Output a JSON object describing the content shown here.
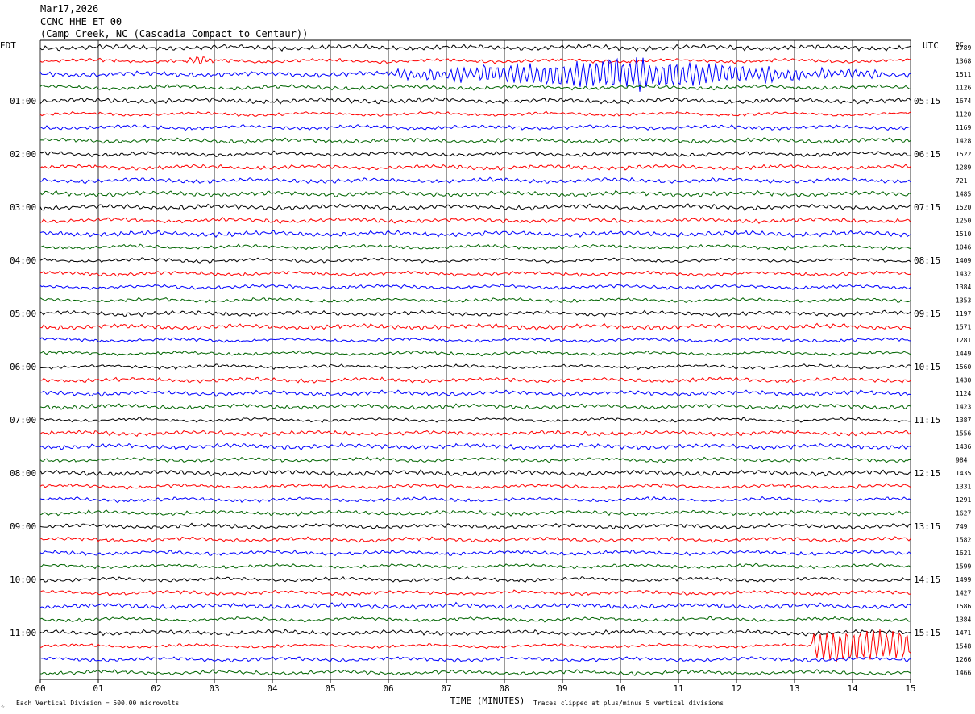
{
  "header": {
    "date": "Mar17,2026",
    "channel": "CCNC HHE ET 00",
    "location": "(Camp Creek, NC (Cascadia Compact to Centaur))"
  },
  "chart_data": {
    "type": "line",
    "subtype": "helicorder",
    "left_axis_label": "EDT",
    "right_axis_label": "UTC",
    "dc_label": "DC",
    "xlabel": "TIME (MINUTES)",
    "xlim": [
      0,
      15
    ],
    "x_ticks": [
      "00",
      "01",
      "02",
      "03",
      "04",
      "05",
      "06",
      "07",
      "08",
      "09",
      "10",
      "11",
      "12",
      "13",
      "14",
      "15"
    ],
    "grid": true,
    "trace_colors": [
      "#000000",
      "#ff0000",
      "#0000ff",
      "#006400"
    ],
    "rows_per_hour": 4,
    "minutes_per_row": 15,
    "left_hour_labels": [
      "01:00",
      "02:00",
      "03:00",
      "04:00",
      "05:00",
      "06:00",
      "07:00",
      "08:00",
      "09:00",
      "10:00",
      "11:00"
    ],
    "right_hour_labels": [
      "05:15",
      "06:15",
      "07:15",
      "08:15",
      "09:15",
      "10:15",
      "11:15",
      "12:15",
      "13:15",
      "14:15",
      "15:15"
    ],
    "dc_values": [
      "1789",
      "1368",
      "1511",
      "1126",
      "1674",
      "1120",
      "1169",
      "1428",
      "1522",
      "1289",
      "721",
      "1485",
      "1520",
      "1250",
      "1510",
      "1046",
      "1409",
      "1432",
      "1384",
      "1353",
      "1197",
      "1571",
      "1281",
      "1449",
      "1560",
      "1430",
      "1124",
      "1423",
      "1387",
      "1556",
      "1436",
      "984",
      "1435",
      "1331",
      "1291",
      "1627",
      "749",
      "1582",
      "1621",
      "1599",
      "1499",
      "1427",
      "1586",
      "1384",
      "1471",
      "1548",
      "1266",
      "1466"
    ],
    "footer_left": "Each Vertical Division =  500.00 microvolts",
    "footer_right": "Traces clipped at plus/minus 5 vertical divisions",
    "corner_mark": "☆",
    "events": [
      {
        "row": 2,
        "start_min": 6.0,
        "end_min": 14.5,
        "peak_min": 10.0,
        "amplitude_divisions": 5,
        "note": "large clipped signal"
      },
      {
        "row": 1,
        "start_min": 2.5,
        "end_min": 3.0,
        "amplitude_divisions": 1
      },
      {
        "row": 45,
        "start_min": 13.3,
        "end_min": 15.0,
        "amplitude_divisions": 5
      }
    ]
  }
}
